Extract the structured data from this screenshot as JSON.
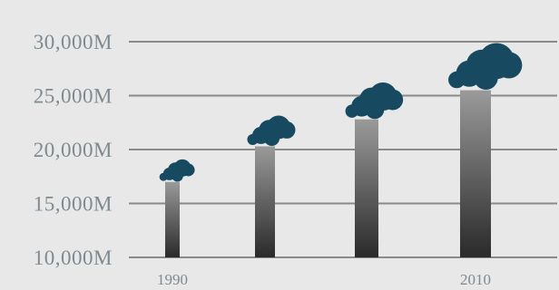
{
  "chart_data": {
    "type": "bar",
    "title": "",
    "xlabel": "",
    "ylabel": "",
    "categories": [
      "1990",
      "",
      "",
      "2010"
    ],
    "values": [
      17000,
      20300,
      22800,
      25500
    ],
    "yticks": [
      "10,000M",
      "15,000M",
      "20,000M",
      "25,000M",
      "30,000M"
    ],
    "ytick_values": [
      10000,
      15000,
      20000,
      25000,
      30000
    ],
    "ylim": [
      10000,
      30000
    ],
    "grid": true,
    "colors": {
      "background": "#e8e8e8",
      "grid": "#8a8a8a",
      "bar_top": "#9a9a9a",
      "bar_bottom": "#2a2a2a",
      "smoke": "#174a60",
      "text": "#7e8a90"
    }
  }
}
